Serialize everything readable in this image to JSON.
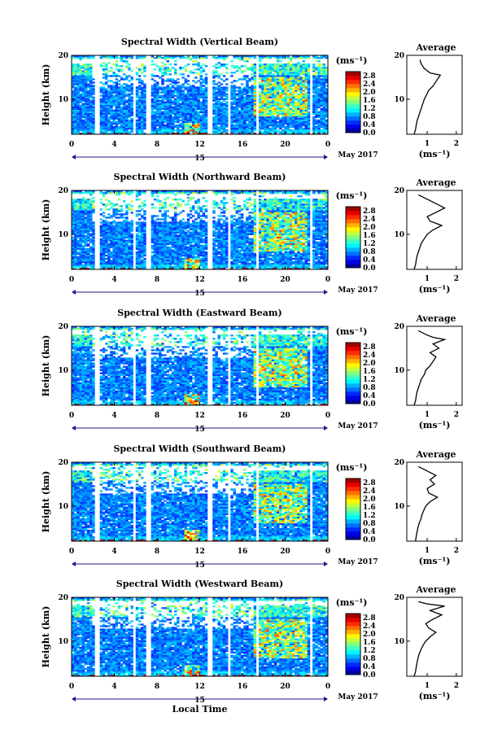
{
  "chart_data": {
    "type": "heatmap",
    "common": {
      "x_ticks": [
        "0",
        "4",
        "8",
        "12",
        "16",
        "20",
        "0"
      ],
      "x_range_hours": [
        0,
        24
      ],
      "date_label": "15",
      "month_year": "May 2017",
      "xlabel": "Local Time",
      "ylabel": "Height (km)",
      "y_range_km": [
        2,
        20
      ],
      "y_ticks": [
        "10",
        "20"
      ],
      "colorbar_unit": "(ms⁻¹)",
      "colorbar_ticks": [
        "0.0",
        "0.4",
        "0.8",
        "1.2",
        "1.6",
        "2.0",
        "2.4",
        "2.8"
      ],
      "colorbar_range": [
        0,
        3.0
      ],
      "colormap": [
        "#000080",
        "#0000ff",
        "#0080ff",
        "#00ffff",
        "#80ff80",
        "#ffff00",
        "#ff8000",
        "#ff0000",
        "#800000"
      ],
      "avg_title": "Average",
      "avg_xlabel": "(ms⁻¹)",
      "data_gaps_hours": [
        [
          2.2,
          2.6
        ],
        [
          5.7,
          6.1
        ],
        [
          7.0,
          7.5
        ],
        [
          12.8,
          13.2
        ],
        [
          14.6,
          14.9
        ],
        [
          17.2,
          17.6
        ],
        [
          22.3,
          22.6
        ]
      ],
      "upper_gap_km": [
        18.2,
        19.2
      ]
    },
    "panels": [
      {
        "title": "Spectral Width (Vertical Beam)",
        "avg_ticks": [
          "1",
          "2"
        ],
        "avg_xlim": [
          0.3,
          2.2
        ],
        "avg_profile": [
          {
            "h": 2,
            "v": 0.55
          },
          {
            "h": 3,
            "v": 0.6
          },
          {
            "h": 4,
            "v": 0.62
          },
          {
            "h": 5,
            "v": 0.65
          },
          {
            "h": 6,
            "v": 0.7
          },
          {
            "h": 7,
            "v": 0.75
          },
          {
            "h": 8,
            "v": 0.8
          },
          {
            "h": 9,
            "v": 0.85
          },
          {
            "h": 10,
            "v": 0.9
          },
          {
            "h": 11,
            "v": 0.98
          },
          {
            "h": 12,
            "v": 1.05
          },
          {
            "h": 13,
            "v": 1.2
          },
          {
            "h": 14,
            "v": 1.3
          },
          {
            "h": 15,
            "v": 1.4
          },
          {
            "h": 15.5,
            "v": 1.45
          },
          {
            "h": 16,
            "v": 1.1
          },
          {
            "h": 17,
            "v": 0.9
          },
          {
            "h": 18,
            "v": 0.8
          },
          {
            "h": 19,
            "v": 0.75
          }
        ]
      },
      {
        "title": "Spectral Width (Northward Beam)",
        "avg_ticks": [
          "1",
          "2"
        ],
        "avg_xlim": [
          0.3,
          2.2
        ],
        "avg_profile": [
          {
            "h": 2,
            "v": 0.55
          },
          {
            "h": 3,
            "v": 0.6
          },
          {
            "h": 4,
            "v": 0.62
          },
          {
            "h": 5,
            "v": 0.65
          },
          {
            "h": 6,
            "v": 0.7
          },
          {
            "h": 7,
            "v": 0.75
          },
          {
            "h": 8,
            "v": 0.8
          },
          {
            "h": 9,
            "v": 0.9
          },
          {
            "h": 10,
            "v": 1.0
          },
          {
            "h": 11,
            "v": 1.2
          },
          {
            "h": 12,
            "v": 1.5
          },
          {
            "h": 12.5,
            "v": 1.3
          },
          {
            "h": 13,
            "v": 1.1
          },
          {
            "h": 14,
            "v": 1.0
          },
          {
            "h": 15,
            "v": 1.3
          },
          {
            "h": 16,
            "v": 1.6
          },
          {
            "h": 17,
            "v": 1.3
          },
          {
            "h": 18,
            "v": 1.0
          },
          {
            "h": 19,
            "v": 0.7
          }
        ]
      },
      {
        "title": "Spectral Width (Eastward Beam)",
        "avg_ticks": [
          "1",
          "2"
        ],
        "avg_xlim": [
          0.3,
          2.2
        ],
        "avg_profile": [
          {
            "h": 2,
            "v": 0.55
          },
          {
            "h": 3,
            "v": 0.6
          },
          {
            "h": 4,
            "v": 0.62
          },
          {
            "h": 5,
            "v": 0.65
          },
          {
            "h": 6,
            "v": 0.7
          },
          {
            "h": 7,
            "v": 0.75
          },
          {
            "h": 8,
            "v": 0.8
          },
          {
            "h": 9,
            "v": 0.9
          },
          {
            "h": 10,
            "v": 0.95
          },
          {
            "h": 11,
            "v": 1.1
          },
          {
            "h": 12,
            "v": 1.2
          },
          {
            "h": 13,
            "v": 1.3
          },
          {
            "h": 14,
            "v": 1.1
          },
          {
            "h": 15,
            "v": 1.4
          },
          {
            "h": 16,
            "v": 1.2
          },
          {
            "h": 17,
            "v": 1.6
          },
          {
            "h": 17.5,
            "v": 1.2
          },
          {
            "h": 18,
            "v": 1.0
          },
          {
            "h": 19,
            "v": 0.7
          }
        ]
      },
      {
        "title": "Spectral Width (Southward Beam)",
        "avg_ticks": [
          "1",
          "2"
        ],
        "avg_xlim": [
          0.3,
          2.2
        ],
        "avg_profile": [
          {
            "h": 2,
            "v": 0.6
          },
          {
            "h": 3,
            "v": 0.62
          },
          {
            "h": 4,
            "v": 0.65
          },
          {
            "h": 5,
            "v": 0.68
          },
          {
            "h": 6,
            "v": 0.72
          },
          {
            "h": 7,
            "v": 0.78
          },
          {
            "h": 8,
            "v": 0.82
          },
          {
            "h": 9,
            "v": 0.88
          },
          {
            "h": 10,
            "v": 0.95
          },
          {
            "h": 11,
            "v": 1.1
          },
          {
            "h": 12,
            "v": 1.35
          },
          {
            "h": 13,
            "v": 1.05
          },
          {
            "h": 14,
            "v": 1.0
          },
          {
            "h": 15,
            "v": 1.25
          },
          {
            "h": 16,
            "v": 1.1
          },
          {
            "h": 17,
            "v": 1.3
          },
          {
            "h": 18,
            "v": 1.0
          },
          {
            "h": 19,
            "v": 0.7
          }
        ]
      },
      {
        "title": "Spectral Width (Westward Beam)",
        "avg_ticks": [
          "1",
          "2"
        ],
        "avg_xlim": [
          0.3,
          2.2
        ],
        "avg_profile": [
          {
            "h": 2,
            "v": 0.55
          },
          {
            "h": 3,
            "v": 0.6
          },
          {
            "h": 4,
            "v": 0.62
          },
          {
            "h": 5,
            "v": 0.65
          },
          {
            "h": 6,
            "v": 0.68
          },
          {
            "h": 7,
            "v": 0.72
          },
          {
            "h": 8,
            "v": 0.78
          },
          {
            "h": 9,
            "v": 0.85
          },
          {
            "h": 10,
            "v": 0.95
          },
          {
            "h": 11,
            "v": 1.1
          },
          {
            "h": 12,
            "v": 1.3
          },
          {
            "h": 13,
            "v": 1.05
          },
          {
            "h": 14,
            "v": 0.95
          },
          {
            "h": 15,
            "v": 1.2
          },
          {
            "h": 16,
            "v": 1.5
          },
          {
            "h": 17,
            "v": 1.1
          },
          {
            "h": 18,
            "v": 1.6
          },
          {
            "h": 18.5,
            "v": 1.0
          },
          {
            "h": 19,
            "v": 0.7
          }
        ]
      }
    ]
  }
}
